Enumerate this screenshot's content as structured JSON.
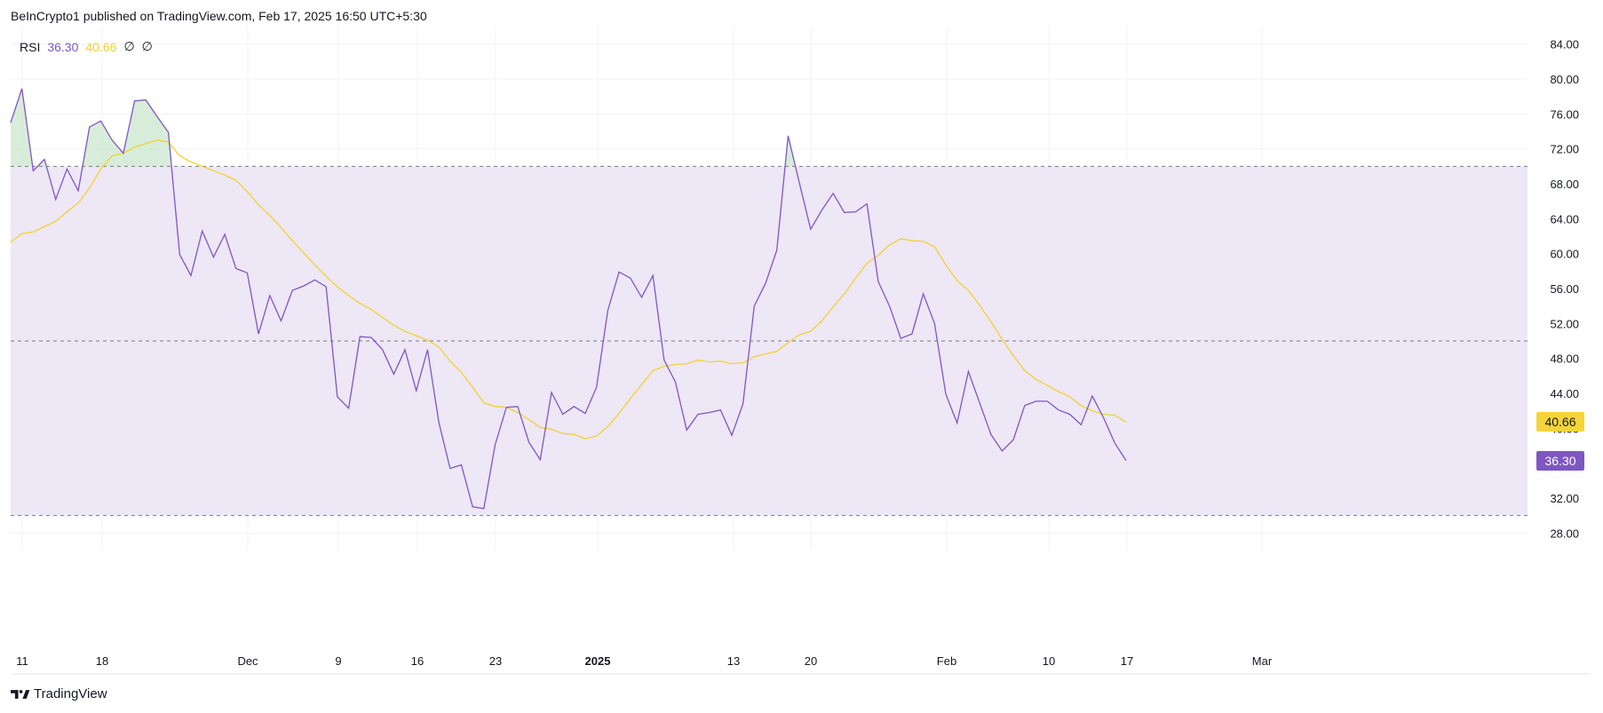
{
  "header": {
    "published": "BeInCrypto1 published on TradingView.com, Feb 17, 2025 16:50 UTC+5:30"
  },
  "legend": {
    "name": "RSI",
    "rsi_value": "36.30",
    "ma_value": "40.66",
    "extra1": "∅",
    "extra2": "∅"
  },
  "footer": {
    "brand": "TradingView"
  },
  "colors": {
    "rsi_line": "#7e57c2",
    "ma_line": "#f2d22e",
    "band_fill": "#ede7f6",
    "overbought_fill": "#c8e6c9",
    "grid": "#f0f3fa",
    "dashed": "#787b86"
  },
  "chart_data": {
    "type": "line",
    "title": "",
    "ylim": [
      26,
      86
    ],
    "y_ticks": [
      "84.00",
      "80.00",
      "76.00",
      "72.00",
      "68.00",
      "64.00",
      "60.00",
      "56.00",
      "52.00",
      "48.00",
      "44.00",
      "40.00",
      "36.00",
      "32.00",
      "28.00"
    ],
    "x_ticks": [
      {
        "label": "11",
        "bold": false
      },
      {
        "label": "18",
        "bold": false
      },
      {
        "label": "Dec",
        "bold": false
      },
      {
        "label": "9",
        "bold": false
      },
      {
        "label": "16",
        "bold": false
      },
      {
        "label": "23",
        "bold": false
      },
      {
        "label": "2025",
        "bold": true
      },
      {
        "label": "13",
        "bold": false
      },
      {
        "label": "20",
        "bold": false
      },
      {
        "label": "Feb",
        "bold": false
      },
      {
        "label": "10",
        "bold": false
      },
      {
        "label": "17",
        "bold": false
      },
      {
        "label": "Mar",
        "bold": false
      }
    ],
    "bands": {
      "upper": 70,
      "middle": 50,
      "lower": 30
    },
    "series": [
      {
        "name": "RSI",
        "values": [
          75.0,
          78.9,
          69.5,
          70.8,
          66.2,
          69.7,
          67.2,
          74.5,
          75.2,
          73.0,
          71.5,
          77.5,
          77.6,
          75.7,
          73.9,
          59.9,
          57.5,
          62.6,
          59.6,
          62.2,
          58.3,
          57.8,
          50.8,
          55.2,
          52.3,
          55.8,
          56.3,
          57.0,
          56.2,
          43.6,
          42.3,
          50.5,
          50.4,
          49.0,
          46.2,
          49.0,
          44.3,
          49.0,
          40.7,
          35.4,
          35.8,
          31.0,
          30.8,
          38.1,
          42.4,
          42.5,
          38.4,
          36.4,
          44.1,
          41.6,
          42.5,
          41.7,
          44.7,
          53.5,
          57.9,
          57.2,
          55.0,
          57.5,
          47.8,
          45.3,
          39.8,
          41.6,
          41.8,
          42.1,
          39.2,
          42.8,
          54.0,
          56.6,
          60.4,
          73.5,
          68.1,
          62.8,
          65.0,
          66.9,
          64.7,
          64.8,
          65.7,
          56.8,
          54.0,
          50.3,
          50.8,
          55.4,
          52.0,
          43.9,
          40.6,
          46.5,
          42.9,
          39.3,
          37.4,
          38.7,
          42.6,
          43.1,
          43.1,
          42.1,
          41.6,
          40.4,
          43.7,
          41.2,
          38.3,
          36.3
        ]
      },
      {
        "name": "",
        "values": [
          61.3,
          62.3,
          62.5,
          63.1,
          63.7,
          64.8,
          65.8,
          67.5,
          69.7,
          71.2,
          71.5,
          72.2,
          72.6,
          73.0,
          72.8,
          71.2,
          70.5,
          70.0,
          69.5,
          69.0,
          68.4,
          67.1,
          65.6,
          64.4,
          63.0,
          61.5,
          60.1,
          58.7,
          57.4,
          56.2,
          55.2,
          54.3,
          53.6,
          52.7,
          51.8,
          51.1,
          50.6,
          50.1,
          49.3,
          47.7,
          46.4,
          44.7,
          42.9,
          42.5,
          42.4,
          41.8,
          41.0,
          40.1,
          39.9,
          39.4,
          39.3,
          38.8,
          39.1,
          40.2,
          41.7,
          43.4,
          45.0,
          46.6,
          47.1,
          47.3,
          47.4,
          47.8,
          47.6,
          47.7,
          47.4,
          47.5,
          48.2,
          48.5,
          48.8,
          49.8,
          50.7,
          51.1,
          52.3,
          53.9,
          55.4,
          57.2,
          58.9,
          59.8,
          61.0,
          61.7,
          61.5,
          61.4,
          60.8,
          58.7,
          56.9,
          55.8,
          54.1,
          52.2,
          50.2,
          48.3,
          46.6,
          45.6,
          44.9,
          44.2,
          43.6,
          42.6,
          42.0,
          41.6,
          41.5,
          40.7
        ]
      }
    ]
  }
}
